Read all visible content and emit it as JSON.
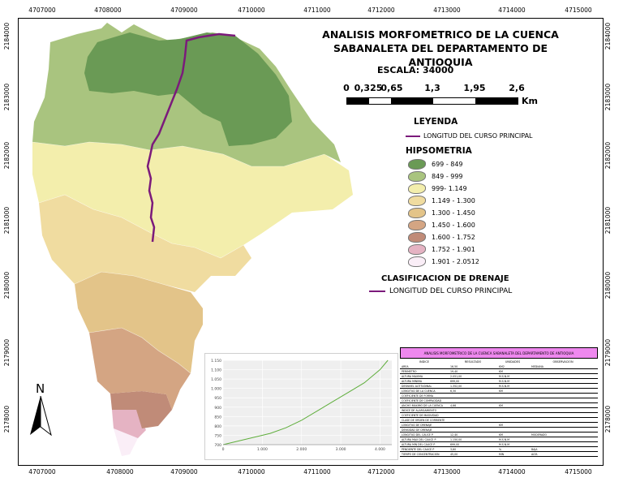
{
  "title_line1": "ANALISIS MORFOMETRICO DE LA CUENCA",
  "title_line2": "SABANALETA DEL DEPARTAMENTO DE ANTIOQUIA",
  "scale_label": "ESCALA: 34000",
  "scale_bar": {
    "labels": [
      "0",
      "0,325",
      "0,65",
      "1,3",
      "1,95",
      "2,6"
    ],
    "unit": "Km"
  },
  "north_label": "N",
  "axis_x_labels": [
    "4707000",
    "4708000",
    "4709000",
    "4710000",
    "4711000",
    "4712000",
    "4713000",
    "4714000",
    "4715000"
  ],
  "axis_y_labels": [
    "2184000",
    "2183000",
    "2182000",
    "2181000",
    "2180000",
    "2179000",
    "2178000"
  ],
  "legend_title": "LEYENDA",
  "legend_line_label": "LONGITUD DEL CURSO PRINCIPAL",
  "hypso_title": "HIPSOMETRIA",
  "hypso_classes": [
    {
      "label": "699 - 849",
      "color": "#6a9a55"
    },
    {
      "label": "849 - 999",
      "color": "#a9c47f"
    },
    {
      "label": "999- 1.149",
      "color": "#f3eeac"
    },
    {
      "label": "1.149 - 1.300",
      "color": "#f0dca0"
    },
    {
      "label": "1.300 - 1.450",
      "color": "#e3c489"
    },
    {
      "label": "1.450 - 1.600",
      "color": "#d4a583"
    },
    {
      "label": "1.600 - 1.752",
      "color": "#c08b78"
    },
    {
      "label": "1.752 - 1.901",
      "color": "#e5b3c3"
    },
    {
      "label": "1.901 - 2.0512",
      "color": "#faeef7"
    }
  ],
  "drainage_title": "CLASIFICACION DE DRENAJE",
  "drainage_label": "LONGITUD DEL CURSO PRINCIPAL",
  "river_color": "#7b1a7b",
  "chart_data": {
    "type": "line",
    "x": [
      0,
      400,
      800,
      1200,
      1600,
      2000,
      2400,
      2800,
      3200,
      3600,
      4000,
      4200
    ],
    "values": [
      700,
      720,
      740,
      760,
      790,
      830,
      880,
      930,
      980,
      1030,
      1100,
      1150
    ],
    "xticks": [
      "0",
      "1.000",
      "2.000",
      "3.000",
      "4.000"
    ],
    "yticks": [
      "700",
      "750",
      "800",
      "850",
      "900",
      "950",
      "1.000",
      "1.050",
      "1.100",
      "1.150"
    ],
    "xlim": [
      0,
      4300
    ],
    "ylim": [
      700,
      1150
    ],
    "grid": true,
    "color": "#5fae3c"
  },
  "table": {
    "title": "ANALISIS MORFOMETRICO DE LA CUENCA SABANALETA DEL DEPARTAMENTO DE ANTIOQUIA",
    "headers": [
      "INDICE",
      "RESULTADO",
      "UNIDADES",
      "OBSERVACION"
    ],
    "rows": [
      [
        "AREA",
        "16,50",
        "KM2",
        "MEDIANA"
      ],
      [
        "PERIMETRO",
        "19,40",
        "KM",
        ""
      ],
      [
        "ALTURA MAXIMA",
        "2.051,00",
        "M.S.N.M",
        ""
      ],
      [
        "ALTURA MINIMA",
        "699,00",
        "M.S.N.M",
        ""
      ],
      [
        "DESNIVEL ALTITUDINAL",
        "1.352,00",
        "M.S.N.M",
        ""
      ],
      [
        "LONGITUD DE LA CUENCA",
        "6,30",
        "KM",
        ""
      ],
      [
        "COEFICIENTE DE FORMA",
        "",
        "",
        ""
      ],
      [
        "COEFICIENTE DE COMPACIDAD",
        "",
        "",
        ""
      ],
      [
        "ANCHO MAXIMO DE LA CUENCA",
        "4,66",
        "KM",
        ""
      ],
      [
        "INDICE DE ALARGAMIENTO",
        "",
        "",
        ""
      ],
      [
        "COEFICIENTE DE MASIVIDAD",
        "",
        "",
        ""
      ],
      [
        "CLASE DE ORDEN DE CORRIENTE",
        "",
        "",
        ""
      ],
      [
        "LONGITUD DE DRENAJE",
        "",
        "KM",
        ""
      ],
      [
        "DENSIDAD DE DRENAJE",
        "",
        "",
        ""
      ],
      [
        "LONGITUD DEL CAUCE P",
        "12,40",
        "KM",
        "MODERADO"
      ],
      [
        "ALTURA MAX DEL CAUCE P",
        "1.150,00",
        "M.S.N.M",
        ""
      ],
      [
        "ALTURA MIN DEL CAUCE P",
        "699,00",
        "M.S.N.M",
        ""
      ],
      [
        "PENDIENTE DEL CAUCE P",
        "3,60",
        "%",
        "BAJA"
      ],
      [
        "TIEMPO DE CONCENTRACION",
        "45,00",
        "MIN",
        "ALTA"
      ]
    ]
  }
}
